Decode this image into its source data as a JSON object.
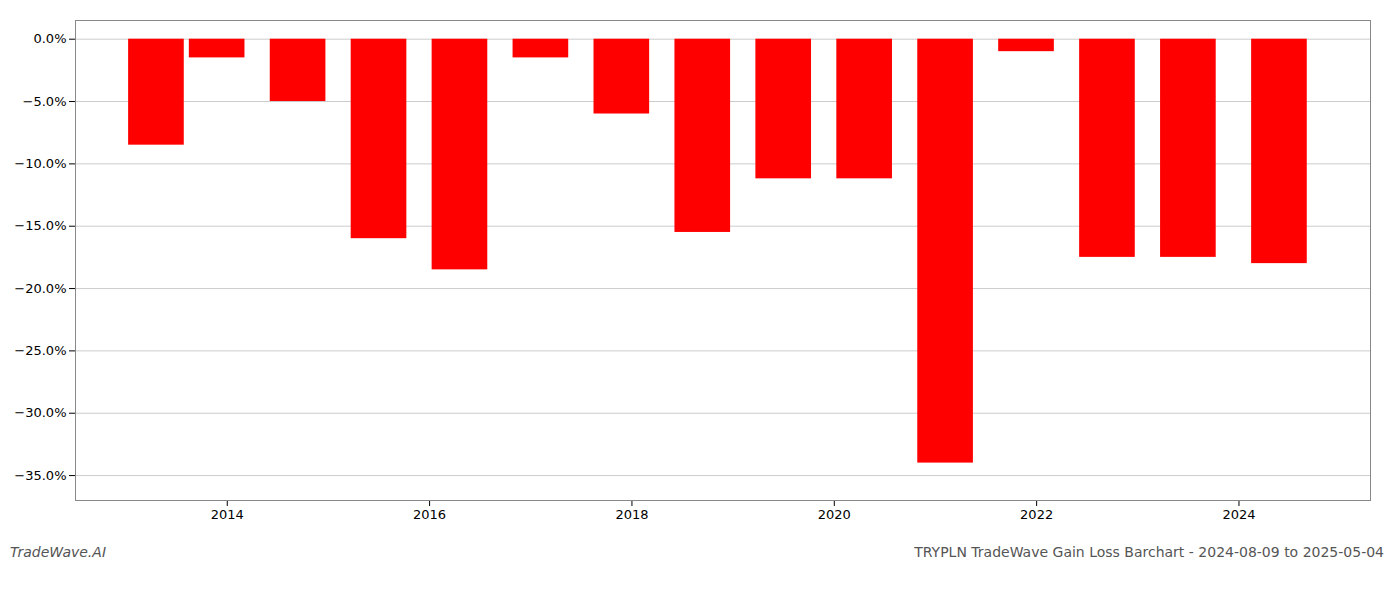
{
  "chart_data": {
    "type": "bar",
    "title": "TRYPLN TradeWave Gain Loss Barchart - 2024-08-09 to 2025-05-04",
    "x": [
      2013.3,
      2013.9,
      2014.7,
      2015.5,
      2016.3,
      2017.1,
      2017.9,
      2018.7,
      2019.5,
      2020.3,
      2021.1,
      2021.9,
      2022.7,
      2023.5,
      2024.4
    ],
    "values": [
      -8.5,
      -1.5,
      -5.0,
      -16.0,
      -18.5,
      -1.5,
      -6.0,
      -15.5,
      -11.2,
      -11.2,
      -34.0,
      -1.0,
      -17.5,
      -17.5,
      -18.0
    ],
    "color": "#ff0000",
    "xlim": [
      2012.5,
      2025.3
    ],
    "xticks": [
      2014,
      2016,
      2018,
      2020,
      2022,
      2024
    ],
    "ylim": [
      -37.0,
      1.5
    ],
    "yticks": [
      {
        "value": 0.0,
        "label": "0.0%"
      },
      {
        "value": -5.0,
        "label": "−5.0%"
      },
      {
        "value": -10.0,
        "label": "−10.0%"
      },
      {
        "value": -15.0,
        "label": "−15.0%"
      },
      {
        "value": -20.0,
        "label": "−20.0%"
      },
      {
        "value": -25.0,
        "label": "−25.0%"
      },
      {
        "value": -30.0,
        "label": "−30.0%"
      },
      {
        "value": -35.0,
        "label": "−35.0%"
      }
    ],
    "grid": true,
    "annotations": [
      {
        "text": "TradeWave.AI"
      }
    ]
  }
}
